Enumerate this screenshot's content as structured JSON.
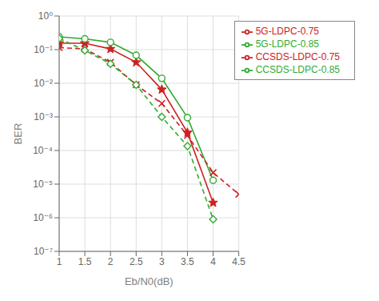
{
  "chart_data": {
    "type": "line",
    "title": "",
    "xlabel": "Eb/N0(dB)",
    "ylabel": "BER",
    "log": "y",
    "grid": true,
    "legend": "upper right",
    "xlim": [
      1,
      4.5
    ],
    "xticks": [
      1.0,
      1.5,
      2.0,
      2.5,
      3.0,
      3.5,
      4.0,
      4.5
    ],
    "ylim": [
      1e-07,
      1
    ],
    "yticks": [
      {
        "value": 1e-07,
        "label": "10⁻⁷"
      },
      {
        "value": 1e-06,
        "label": "10⁻⁶"
      },
      {
        "value": 1e-05,
        "label": "10⁻⁵"
      },
      {
        "value": 0.0001,
        "label": "10⁻⁴"
      },
      {
        "value": 0.001,
        "label": "10⁻³"
      },
      {
        "value": 0.01,
        "label": "10⁻²"
      },
      {
        "value": 0.1,
        "label": "10⁻¹"
      },
      {
        "value": 1,
        "label": "10⁰"
      }
    ],
    "series": [
      {
        "name": "5G-LDPC-0.75",
        "color": "#cc2222",
        "line_style": "solid",
        "marker": "star",
        "x": [
          1.0,
          1.5,
          2.0,
          2.5,
          3.0,
          3.5,
          4.0
        ],
        "values": [
          0.155,
          0.155,
          0.105,
          0.042,
          0.0065,
          0.00034,
          2.8e-06
        ]
      },
      {
        "name": "5G-LDPC-0.85",
        "color": "#33aa33",
        "line_style": "solid",
        "marker": "circle",
        "x": [
          1.0,
          1.5,
          2.0,
          2.5,
          3.0,
          3.5,
          4.0
        ],
        "values": [
          0.24,
          0.21,
          0.165,
          0.068,
          0.014,
          0.00095,
          1.3e-05
        ]
      },
      {
        "name": "CCSDS-LDPC-0.75",
        "color": "#cc2222",
        "line_style": "dashed",
        "marker": "x",
        "x": [
          1.0,
          1.5,
          2.0,
          2.5,
          3.0,
          3.5,
          4.0,
          4.5
        ],
        "values": [
          0.115,
          0.105,
          0.042,
          0.009,
          0.0025,
          0.00028,
          2.2e-05,
          5e-06
        ]
      },
      {
        "name": "CCSDS-LDPC-0.85",
        "color": "#33aa33",
        "line_style": "dashed",
        "marker": "diamond",
        "x": [
          1.0,
          1.5,
          2.0,
          2.5,
          3.0,
          3.5,
          4.0
        ],
        "values": [
          0.215,
          0.095,
          0.038,
          0.009,
          0.001,
          0.000135,
          9e-07
        ]
      }
    ]
  }
}
